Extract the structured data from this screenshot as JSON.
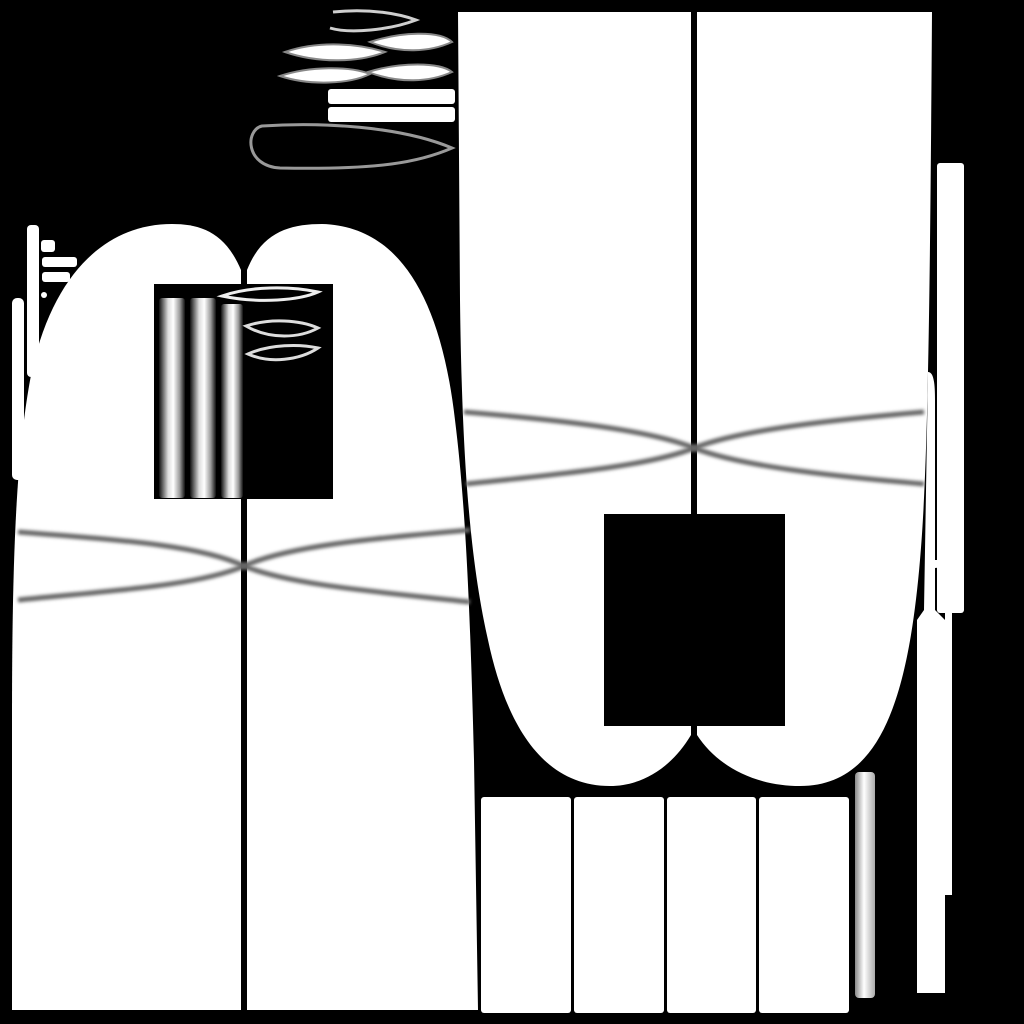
{
  "image": {
    "background_color": "#000000",
    "fill_color": "#ffffff",
    "seam_color": "#777777",
    "panels": [
      {
        "name": "left-garment-panel",
        "has_seam_line": true,
        "has_cutout": true
      },
      {
        "name": "right-garment-panel",
        "has_seam_line": true,
        "has_cutout": true
      },
      {
        "name": "bottom-strip-panels",
        "count": 4
      },
      {
        "name": "vertical-strap-pieces",
        "count": 4
      },
      {
        "name": "small-tapered-pieces",
        "count": 7
      }
    ]
  }
}
